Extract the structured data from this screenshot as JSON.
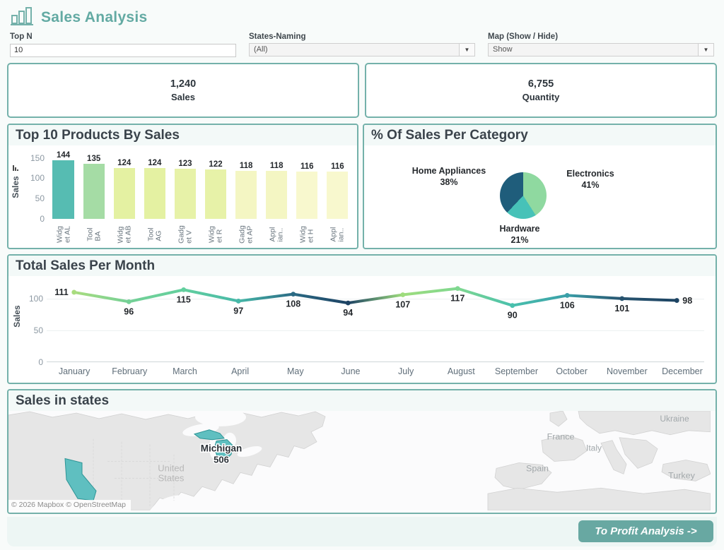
{
  "header": {
    "title": "Sales Analysis"
  },
  "filters": {
    "top_n": {
      "label": "Top N",
      "value": "10"
    },
    "states_naming": {
      "label": "States-Naming",
      "value": "(All)"
    },
    "map_toggle": {
      "label": "Map (Show / Hide)",
      "value": "Show"
    }
  },
  "kpis": [
    {
      "value": "1,240",
      "label": "Sales"
    },
    {
      "value": "6,755",
      "label": "Quantity"
    }
  ],
  "chart_data": [
    {
      "id": "top_products",
      "type": "bar",
      "title": "Top 10 Products By Sales",
      "ylabel": "Sales",
      "ylim": [
        0,
        150
      ],
      "yticks": [
        150,
        100,
        50,
        0
      ],
      "categories": [
        {
          "lines": [
            "Widg",
            "et AL"
          ]
        },
        {
          "lines": [
            "Tool",
            "BA"
          ]
        },
        {
          "lines": [
            "Widg",
            "et AB"
          ]
        },
        {
          "lines": [
            "Tool",
            "AG"
          ]
        },
        {
          "lines": [
            "Gadg",
            "et V"
          ]
        },
        {
          "lines": [
            "Widg",
            "et R"
          ]
        },
        {
          "lines": [
            "Gadg",
            "et AP"
          ]
        },
        {
          "lines": [
            "Appl",
            "ian.."
          ]
        },
        {
          "lines": [
            "Widg",
            "et H"
          ]
        },
        {
          "lines": [
            "Appl",
            "ian.."
          ]
        }
      ],
      "values": [
        144,
        135,
        124,
        124,
        123,
        122,
        118,
        118,
        116,
        116
      ],
      "bar_colors": [
        "#56bcb2",
        "#a5dca5",
        "#e4f1a2",
        "#e4f1a2",
        "#e7f2a8",
        "#e7f2a8",
        "#f4f6c3",
        "#f4f6c3",
        "#f8f8ce",
        "#f8f8ce"
      ]
    },
    {
      "id": "category_share",
      "type": "pie",
      "title": "% Of Sales Per Category",
      "slices": [
        {
          "label": "Electronics",
          "pct": 41,
          "pct_label": "41%",
          "color": "#8fd9a0"
        },
        {
          "label": "Hardware",
          "pct": 21,
          "pct_label": "21%",
          "color": "#47c2b8"
        },
        {
          "label": "Home Appliances",
          "pct": 38,
          "pct_label": "38%",
          "color": "#1f5d7b"
        }
      ]
    },
    {
      "id": "monthly_sales",
      "type": "line",
      "title": "Total Sales Per Month",
      "ylabel": "Sales",
      "ylim": [
        0,
        130
      ],
      "yticks": [
        100,
        50,
        0
      ],
      "categories": [
        "January",
        "February",
        "March",
        "April",
        "May",
        "June",
        "July",
        "August",
        "September",
        "October",
        "November",
        "December"
      ],
      "values": [
        111,
        96,
        115,
        97,
        108,
        94,
        107,
        117,
        90,
        106,
        101,
        98
      ],
      "point_colors": [
        "#a9dc7f",
        "#74d096",
        "#62cf9e",
        "#47b8a8",
        "#2a6a84",
        "#1d4263",
        "#9edc7d",
        "#7fd890",
        "#49c0ad",
        "#3a9fa8",
        "#27536f",
        "#1d4463"
      ],
      "label_pos": [
        "left",
        "below",
        "below",
        "below",
        "below",
        "below",
        "below",
        "below",
        "below",
        "below",
        "below",
        "right"
      ]
    },
    {
      "id": "sales_map",
      "type": "map",
      "title": "Sales in states",
      "highlighted_state": {
        "name": "Michigan",
        "value": "506"
      },
      "region_label_lines": [
        "United",
        "States"
      ],
      "country_labels": [
        "Ukraine",
        "France",
        "Italy",
        "Spain",
        "Turkey"
      ],
      "attribution": "© 2026 Mapbox © OpenStreetMap",
      "highlight_color": "#5fbfc0"
    }
  ],
  "footer": {
    "button_label": "To Profit Analysis ->"
  }
}
